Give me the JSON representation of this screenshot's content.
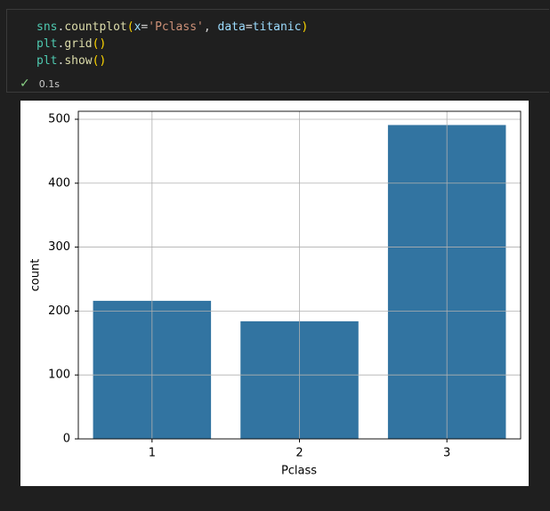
{
  "code": [
    [
      {
        "text": "sns",
        "color": "#4ec9b0"
      },
      {
        "text": ".",
        "color": "#d4d4d4"
      },
      {
        "text": "countplot",
        "color": "#dcdcaa"
      },
      {
        "text": "(",
        "color": "#ffd700"
      },
      {
        "text": "x",
        "color": "#9cdcfe"
      },
      {
        "text": "=",
        "color": "#d4d4d4"
      },
      {
        "text": "'Pclass'",
        "color": "#ce9178"
      },
      {
        "text": ", ",
        "color": "#d4d4d4"
      },
      {
        "text": "data",
        "color": "#9cdcfe"
      },
      {
        "text": "=",
        "color": "#d4d4d4"
      },
      {
        "text": "titanic",
        "color": "#9cdcfe"
      },
      {
        "text": ")",
        "color": "#ffd700"
      }
    ],
    [
      {
        "text": "plt",
        "color": "#4ec9b0"
      },
      {
        "text": ".",
        "color": "#d4d4d4"
      },
      {
        "text": "grid",
        "color": "#dcdcaa"
      },
      {
        "text": "()",
        "color": "#ffd700"
      }
    ],
    [
      {
        "text": "plt",
        "color": "#4ec9b0"
      },
      {
        "text": ".",
        "color": "#d4d4d4"
      },
      {
        "text": "show",
        "color": "#dcdcaa"
      },
      {
        "text": "()",
        "color": "#ffd700"
      }
    ]
  ],
  "status": {
    "check": "✓",
    "time": "0.1s"
  },
  "chart_data": {
    "type": "bar",
    "xlabel": "Pclass",
    "ylabel": "count",
    "categories": [
      "1",
      "2",
      "3"
    ],
    "values": [
      216,
      184,
      491
    ],
    "color": "#3274a1",
    "ylim": [
      0,
      512.5
    ],
    "yticks": [
      0,
      100,
      200,
      300,
      400,
      500
    ],
    "grid": true
  }
}
